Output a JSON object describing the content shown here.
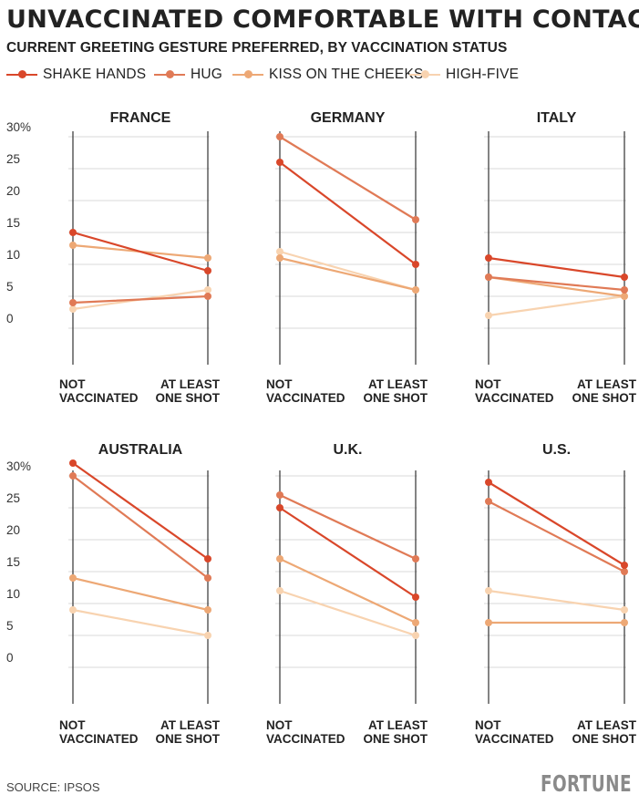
{
  "title": "UNVACCINATED COMFORTABLE WITH CONTACT",
  "subtitle": "CURRENT GREETING GESTURE PREFERRED, BY VACCINATION STATUS",
  "legend": [
    {
      "label": "SHAKE HANDS",
      "color": "#d9472a"
    },
    {
      "label": "HUG",
      "color": "#e07a56"
    },
    {
      "label": "KISS ON THE CHEEKS",
      "color": "#eda875"
    },
    {
      "label": "HIGH-FIVE",
      "color": "#f8d3b0"
    }
  ],
  "source": "SOURCE: IPSOS",
  "logo": "FORTUNE",
  "chart_data": [
    {
      "type": "line",
      "title": "FRANCE",
      "categories": [
        "NOT VACCINATED",
        "AT LEAST ONE SHOT"
      ],
      "y_ticks": [
        "0",
        "5",
        "10",
        "15",
        "20",
        "25",
        "30%"
      ],
      "ylim": [
        0,
        30
      ],
      "grid": true,
      "series": [
        {
          "name": "SHAKE HANDS",
          "values": [
            15,
            9
          ]
        },
        {
          "name": "HUG",
          "values": [
            4,
            5
          ]
        },
        {
          "name": "KISS ON THE CHEEKS",
          "values": [
            13,
            11
          ]
        },
        {
          "name": "HIGH-FIVE",
          "values": [
            3,
            6
          ]
        }
      ]
    },
    {
      "type": "line",
      "title": "GERMANY",
      "categories": [
        "NOT VACCINATED",
        "AT LEAST ONE SHOT"
      ],
      "ylim": [
        0,
        30
      ],
      "grid": true,
      "series": [
        {
          "name": "SHAKE HANDS",
          "values": [
            26,
            10
          ]
        },
        {
          "name": "HUG",
          "values": [
            30,
            17
          ]
        },
        {
          "name": "KISS ON THE CHEEKS",
          "values": [
            11,
            6
          ]
        },
        {
          "name": "HIGH-FIVE",
          "values": [
            12,
            6
          ]
        }
      ]
    },
    {
      "type": "line",
      "title": "ITALY",
      "categories": [
        "NOT VACCINATED",
        "AT LEAST ONE SHOT"
      ],
      "ylim": [
        0,
        30
      ],
      "grid": true,
      "series": [
        {
          "name": "SHAKE HANDS",
          "values": [
            11,
            8
          ]
        },
        {
          "name": "HUG",
          "values": [
            8,
            6
          ]
        },
        {
          "name": "KISS ON THE CHEEKS",
          "values": [
            8,
            5
          ]
        },
        {
          "name": "HIGH-FIVE",
          "values": [
            2,
            5
          ]
        }
      ]
    },
    {
      "type": "line",
      "title": "AUSTRALIA",
      "categories": [
        "NOT VACCINATED",
        "AT LEAST ONE SHOT"
      ],
      "y_ticks": [
        "0",
        "5",
        "10",
        "15",
        "20",
        "25",
        "30%"
      ],
      "ylim": [
        0,
        30
      ],
      "grid": true,
      "series": [
        {
          "name": "SHAKE HANDS",
          "values": [
            32,
            17
          ]
        },
        {
          "name": "HUG",
          "values": [
            30,
            14
          ]
        },
        {
          "name": "KISS ON THE CHEEKS",
          "values": [
            14,
            9
          ]
        },
        {
          "name": "HIGH-FIVE",
          "values": [
            9,
            5
          ]
        }
      ]
    },
    {
      "type": "line",
      "title": "U.K.",
      "categories": [
        "NOT VACCINATED",
        "AT LEAST ONE SHOT"
      ],
      "ylim": [
        0,
        30
      ],
      "grid": true,
      "series": [
        {
          "name": "SHAKE HANDS",
          "values": [
            25,
            11
          ]
        },
        {
          "name": "HUG",
          "values": [
            27,
            17
          ]
        },
        {
          "name": "KISS ON THE CHEEKS",
          "values": [
            17,
            7
          ]
        },
        {
          "name": "HIGH-FIVE",
          "values": [
            12,
            5
          ]
        }
      ]
    },
    {
      "type": "line",
      "title": "U.S.",
      "categories": [
        "NOT VACCINATED",
        "AT LEAST ONE SHOT"
      ],
      "ylim": [
        0,
        30
      ],
      "grid": true,
      "series": [
        {
          "name": "SHAKE HANDS",
          "values": [
            29,
            16
          ]
        },
        {
          "name": "HUG",
          "values": [
            26,
            15
          ]
        },
        {
          "name": "KISS ON THE CHEEKS",
          "values": [
            7,
            7
          ]
        },
        {
          "name": "HIGH-FIVE",
          "values": [
            12,
            9
          ]
        }
      ]
    }
  ]
}
